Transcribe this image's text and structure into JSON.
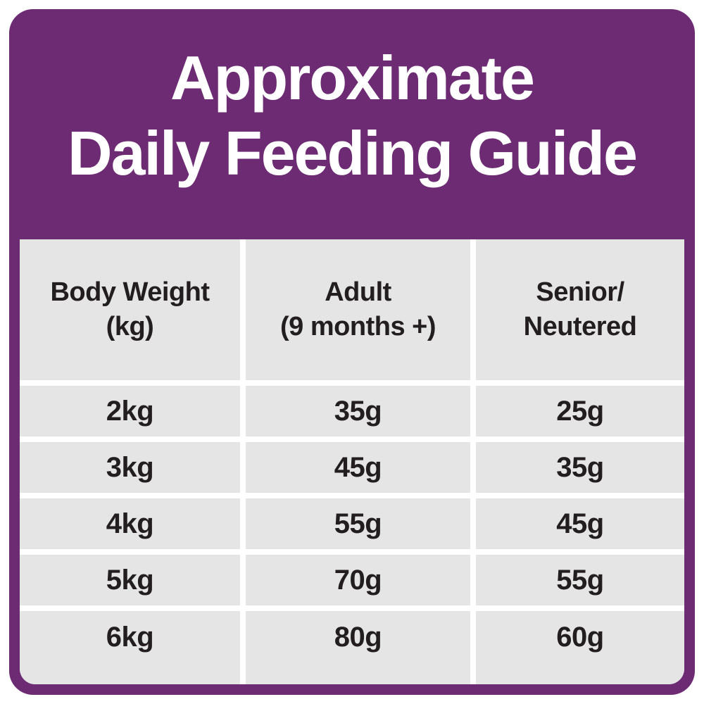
{
  "title": {
    "line1": "Approximate",
    "line2": "Daily Feeding Guide"
  },
  "table": {
    "headers": [
      {
        "line1": "Body Weight",
        "line2": "(kg)"
      },
      {
        "line1": "Adult",
        "line2": "(9 months +)"
      },
      {
        "line1": "Senior/",
        "line2": "Neutered"
      }
    ],
    "rows": [
      [
        "2kg",
        "35g",
        "25g"
      ],
      [
        "3kg",
        "45g",
        "35g"
      ],
      [
        "4kg",
        "55g",
        "45g"
      ],
      [
        "5kg",
        "70g",
        "55g"
      ],
      [
        "6kg",
        "80g",
        "60g"
      ]
    ]
  },
  "colors": {
    "purple": "#6C2B72",
    "cell_gray": "#E6E5E6",
    "text_dark": "#221E20",
    "white": "#FFFFFF"
  },
  "chart_data": {
    "type": "table",
    "title": "Approximate Daily Feeding Guide",
    "columns": [
      "Body Weight (kg)",
      "Adult (9 months +)",
      "Senior/Neutered"
    ],
    "rows": [
      [
        "2kg",
        "35g",
        "25g"
      ],
      [
        "3kg",
        "45g",
        "35g"
      ],
      [
        "4kg",
        "55g",
        "45g"
      ],
      [
        "5kg",
        "70g",
        "55g"
      ],
      [
        "6kg",
        "80g",
        "60g"
      ]
    ]
  }
}
